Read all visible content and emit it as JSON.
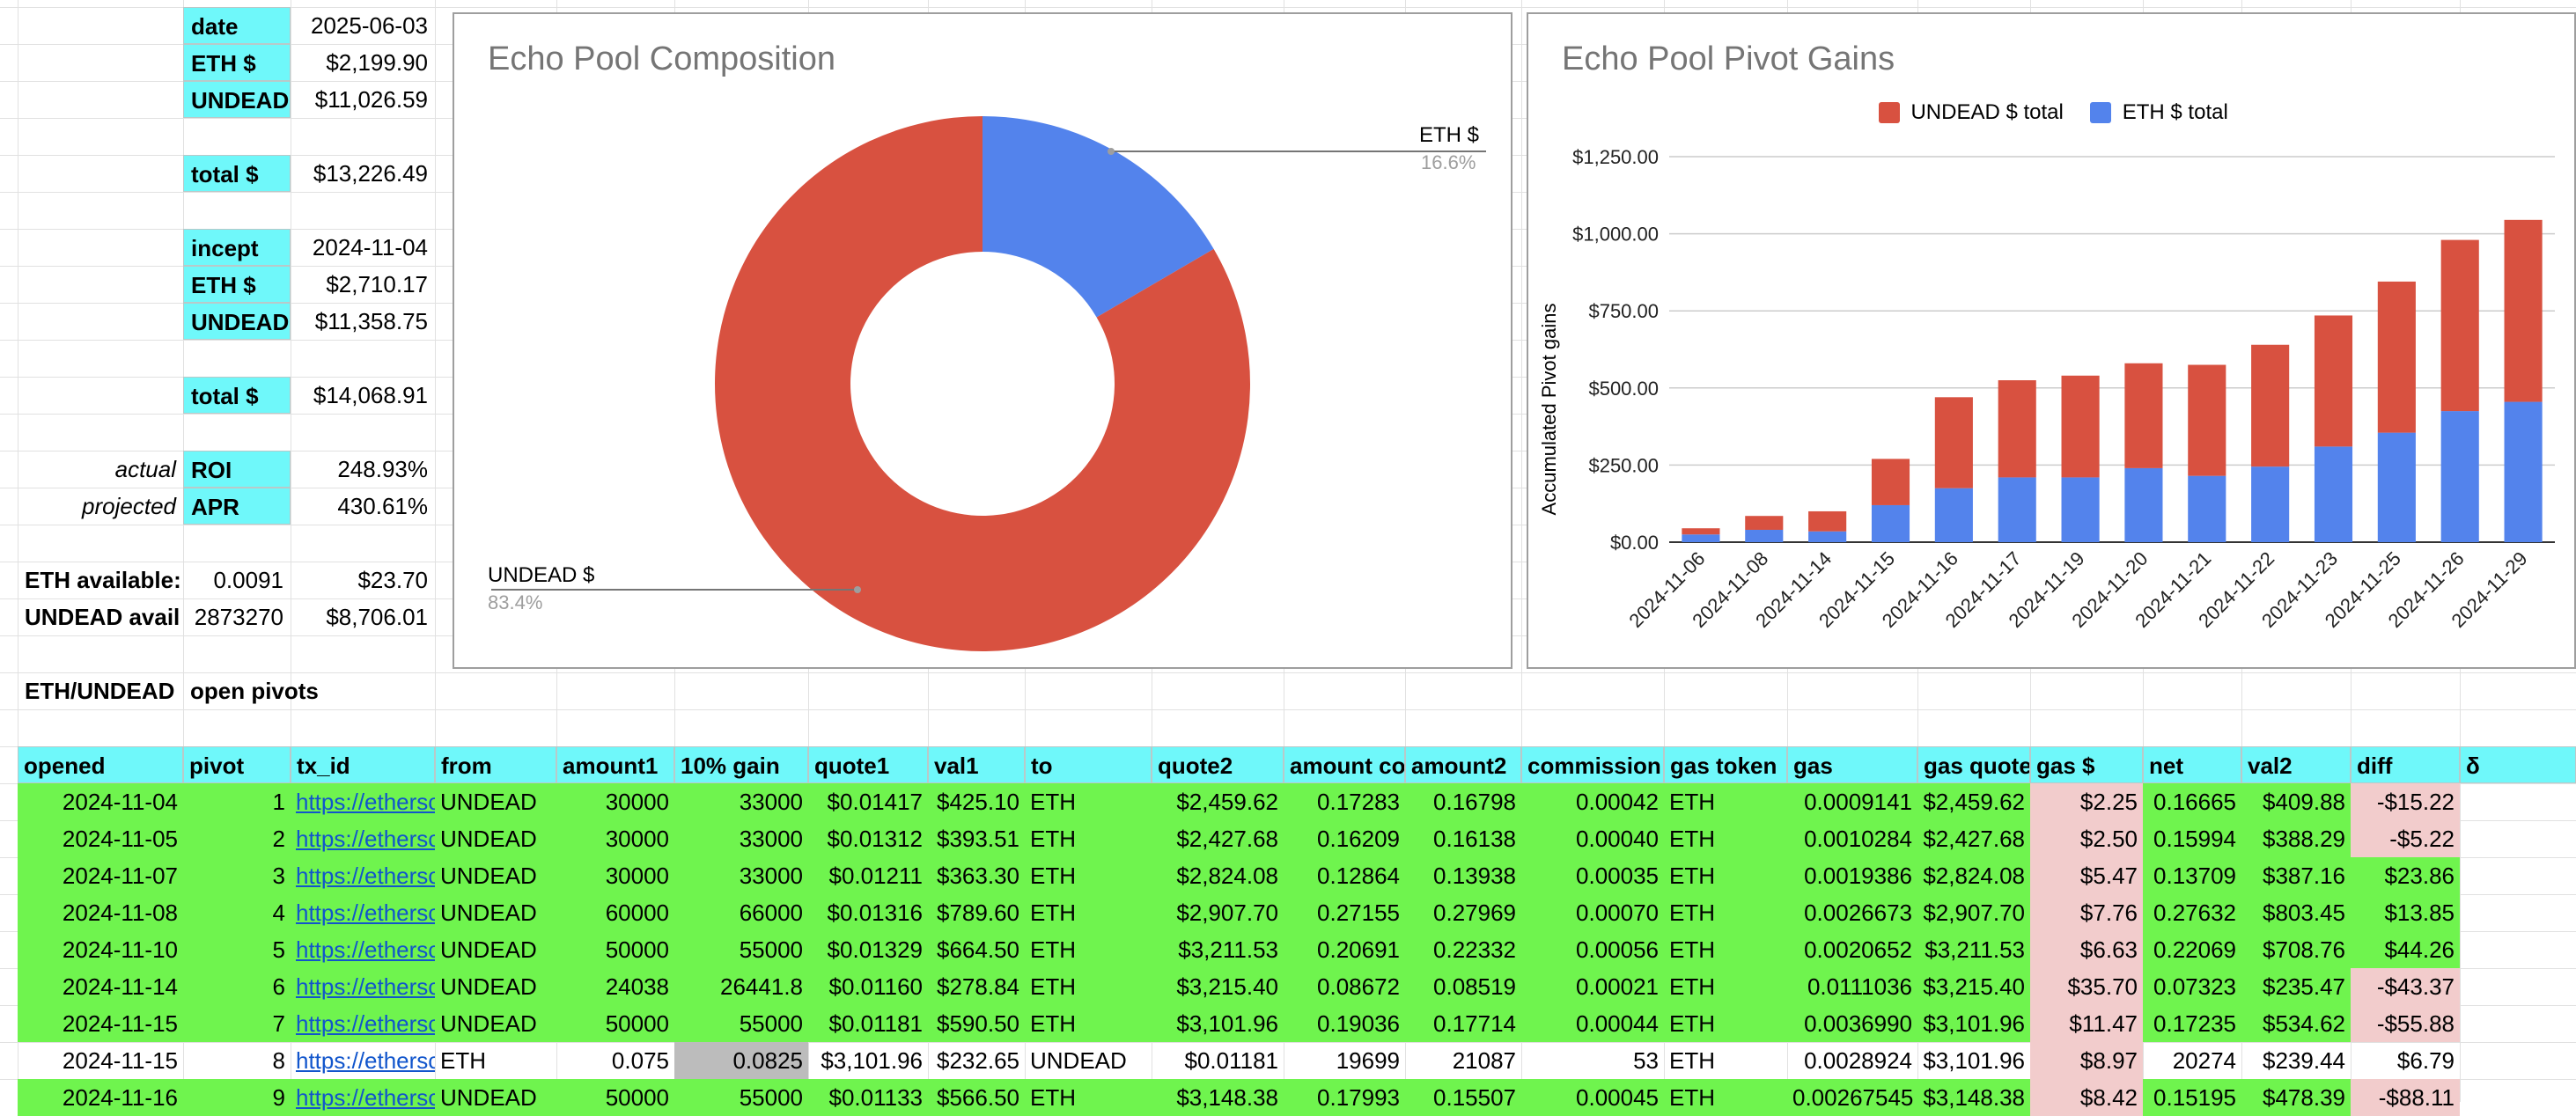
{
  "summary": {
    "date_label": "date",
    "date_value": "2025-06-03",
    "eth_label": "ETH $",
    "eth_value": "$2,199.90",
    "undead_label": "UNDEAD",
    "undead_value": "$11,026.59",
    "total_label": "total $",
    "total_value": "$13,226.49",
    "incept_label": "incept",
    "incept_value": "2024-11-04",
    "incept_eth_label": "ETH $",
    "incept_eth_value": "$2,710.17",
    "incept_undead_label": "UNDEAD",
    "incept_undead_value": "$11,358.75",
    "incept_total_label": "total $",
    "incept_total_value": "$14,068.91",
    "actual_label": "actual",
    "roi_label": "ROI",
    "roi_value": "248.93%",
    "projected_label": "projected",
    "apr_label": "APR",
    "apr_value": "430.61%",
    "eth_available_label": "ETH available:",
    "eth_available_amount": "0.0091",
    "eth_available_usd": "$23.70",
    "undead_avail_label": "UNDEAD avail",
    "undead_avail_amount": "2873270",
    "undead_avail_usd": "$8,706.01",
    "pair_label": "ETH/UNDEAD",
    "open_pivots_label": "open pivots"
  },
  "table": {
    "headers": [
      "opened",
      "pivot",
      "tx_id",
      "from",
      "amount1",
      "10% gain",
      "quote1",
      "val1",
      "to",
      "quote2",
      "amount co",
      "amount2",
      "commission",
      "gas token",
      "gas",
      "gas quote",
      "gas $",
      "net",
      "val2",
      "diff",
      "δ"
    ],
    "rows": [
      [
        "2024-11-04",
        "1",
        "https://etherscan.io/tx/",
        "UNDEAD",
        "30000",
        "33000",
        "$0.01417",
        "$425.10",
        "ETH",
        "$2,459.62",
        "0.17283",
        "0.16798",
        "0.00042",
        "ETH",
        "0.0009141",
        "$2,459.62",
        "$2.25",
        "0.16665",
        "$409.88",
        "-$15.22",
        ""
      ],
      [
        "2024-11-05",
        "2",
        "https://etherscan.io/tx/",
        "UNDEAD",
        "30000",
        "33000",
        "$0.01312",
        "$393.51",
        "ETH",
        "$2,427.68",
        "0.16209",
        "0.16138",
        "0.00040",
        "ETH",
        "0.0010284",
        "$2,427.68",
        "$2.50",
        "0.15994",
        "$388.29",
        "-$5.22",
        ""
      ],
      [
        "2024-11-07",
        "3",
        "https://etherscan.io/tx/",
        "UNDEAD",
        "30000",
        "33000",
        "$0.01211",
        "$363.30",
        "ETH",
        "$2,824.08",
        "0.12864",
        "0.13938",
        "0.00035",
        "ETH",
        "0.0019386",
        "$2,824.08",
        "$5.47",
        "0.13709",
        "$387.16",
        "$23.86",
        ""
      ],
      [
        "2024-11-08",
        "4",
        "https://etherscan.io/tx/",
        "UNDEAD",
        "60000",
        "66000",
        "$0.01316",
        "$789.60",
        "ETH",
        "$2,907.70",
        "0.27155",
        "0.27969",
        "0.00070",
        "ETH",
        "0.0026673",
        "$2,907.70",
        "$7.76",
        "0.27632",
        "$803.45",
        "$13.85",
        ""
      ],
      [
        "2024-11-10",
        "5",
        "https://etherscan.io/tx/",
        "UNDEAD",
        "50000",
        "55000",
        "$0.01329",
        "$664.50",
        "ETH",
        "$3,211.53",
        "0.20691",
        "0.22332",
        "0.00056",
        "ETH",
        "0.0020652",
        "$3,211.53",
        "$6.63",
        "0.22069",
        "$708.76",
        "$44.26",
        ""
      ],
      [
        "2024-11-14",
        "6",
        "https://etherscan.io/tx/",
        "UNDEAD",
        "24038",
        "26441.8",
        "$0.01160",
        "$278.84",
        "ETH",
        "$3,215.40",
        "0.08672",
        "0.08519",
        "0.00021",
        "ETH",
        "0.0111036",
        "$3,215.40",
        "$35.70",
        "0.07323",
        "$235.47",
        "-$43.37",
        ""
      ],
      [
        "2024-11-15",
        "7",
        "https://etherscan.io/tx/",
        "UNDEAD",
        "50000",
        "55000",
        "$0.01181",
        "$590.50",
        "ETH",
        "$3,101.96",
        "0.19036",
        "0.17714",
        "0.00044",
        "ETH",
        "0.0036990",
        "$3,101.96",
        "$11.47",
        "0.17235",
        "$534.62",
        "-$55.88",
        ""
      ],
      [
        "2024-11-15",
        "8",
        "https://etherscan.io/tx/",
        "ETH",
        "0.075",
        "0.0825",
        "$3,101.96",
        "$232.65",
        "UNDEAD",
        "$0.01181",
        "19699",
        "21087",
        "53",
        "ETH",
        "0.0028924",
        "$3,101.96",
        "$8.97",
        "20274",
        "$239.44",
        "$6.79",
        ""
      ],
      [
        "2024-11-16",
        "9",
        "https://etherscan.io/tx/",
        "UNDEAD",
        "50000",
        "55000",
        "$0.01133",
        "$566.50",
        "ETH",
        "$3,148.38",
        "0.17993",
        "0.15507",
        "0.00045",
        "ETH",
        "0.00267545",
        "$3,148.38",
        "$8.42",
        "0.15195",
        "$478.39",
        "-$88.11",
        ""
      ]
    ]
  },
  "pie": {
    "title": "Echo Pool Composition",
    "chart_data": {
      "type": "pie",
      "title": "Echo Pool Composition",
      "slices": [
        {
          "name": "ETH $",
          "percent": "16.6%",
          "value": 16.6,
          "color": "#5383ec"
        },
        {
          "name": "UNDEAD $",
          "percent": "83.4%",
          "value": 83.4,
          "color": "#d85140"
        }
      ]
    }
  },
  "bar": {
    "title": "Echo Pool Pivot Gains",
    "ylabel": "Accumulated Pivot gains",
    "legend": [
      {
        "name": "UNDEAD $ total",
        "color": "#d85140"
      },
      {
        "name": "ETH $ total",
        "color": "#5383ec"
      }
    ],
    "yticks": [
      "$0.00",
      "$250.00",
      "$500.00",
      "$750.00",
      "$1,000.00",
      "$1,250.00"
    ]
  },
  "chart_data": {
    "type": "bar",
    "stacked": true,
    "title": "Echo Pool Pivot Gains",
    "ylabel": "Accumulated Pivot gains",
    "ylim": [
      0,
      1250
    ],
    "grid": true,
    "legend_position": "top",
    "categories": [
      "2024-11-06",
      "2024-11-08",
      "2024-11-14",
      "2024-11-15",
      "2024-11-16",
      "2024-11-17",
      "2024-11-19",
      "2024-11-20",
      "2024-11-21",
      "2024-11-22",
      "2024-11-23",
      "2024-11-25",
      "2024-11-26",
      "2024-11-29"
    ],
    "series": [
      {
        "name": "ETH $ total",
        "values": [
          25,
          40,
          35,
          120,
          175,
          210,
          210,
          240,
          215,
          245,
          310,
          355,
          425,
          455
        ]
      },
      {
        "name": "UNDEAD $ total",
        "values": [
          20,
          45,
          65,
          150,
          295,
          315,
          330,
          340,
          360,
          395,
          425,
          490,
          555,
          590
        ]
      }
    ]
  }
}
